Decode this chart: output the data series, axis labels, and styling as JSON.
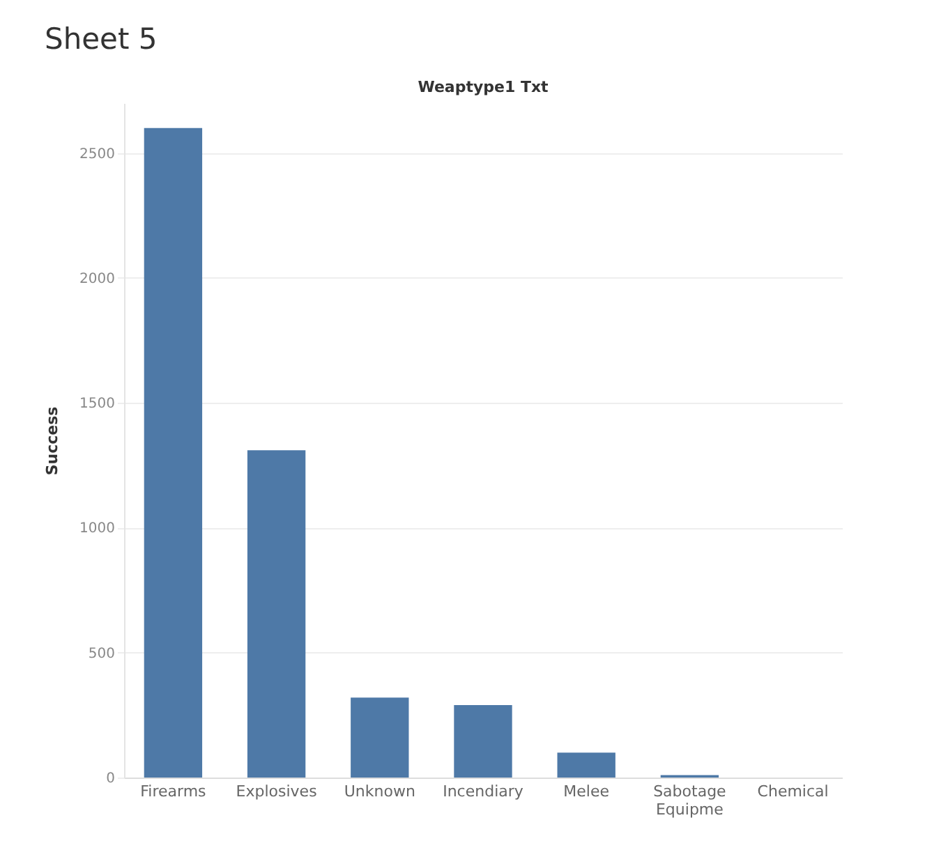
{
  "chart_data": {
    "type": "bar",
    "title": "Sheet 5",
    "xlabel": "Weaptype1 Txt",
    "ylabel": "Success",
    "categories": [
      "Firearms",
      "Explosives",
      "Unknown",
      "Incendiary",
      "Melee",
      "Sabotage Equipme",
      "Chemical"
    ],
    "values": [
      2600,
      1310,
      320,
      290,
      100,
      10,
      0
    ],
    "color": "#4e79a7",
    "ylim": [
      0,
      2700
    ],
    "yticks": [
      0,
      500,
      1000,
      1500,
      2000,
      2500
    ],
    "grid": "y"
  }
}
